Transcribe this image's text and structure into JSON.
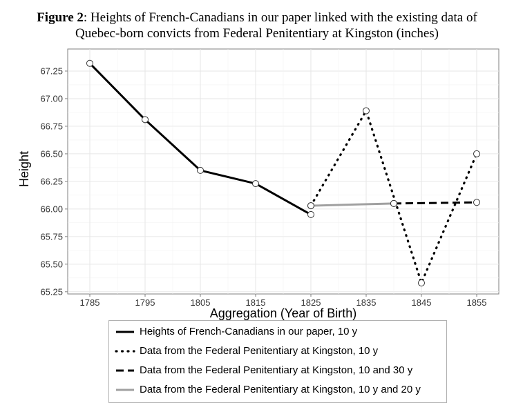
{
  "title": {
    "figure_label": "Figure 2",
    "line1_rest": ": Heights of French-Canadians in our paper linked with the existing data of",
    "line2": "Quebec-born convicts from Federal Penitentiary at Kingston (inches)"
  },
  "chart_data": {
    "type": "line",
    "xlabel": "Aggregation (Year of Birth)",
    "ylabel": "Height",
    "xlim": [
      1781,
      1859
    ],
    "ylim": [
      65.23,
      67.45
    ],
    "x_ticks": [
      1785,
      1795,
      1805,
      1815,
      1825,
      1835,
      1845,
      1855
    ],
    "y_ticks": [
      65.25,
      65.5,
      65.75,
      66.0,
      66.25,
      66.5,
      66.75,
      67.0,
      67.25
    ],
    "y_tick_labels": [
      "65.25",
      "65.50",
      "65.75",
      "66.00",
      "66.25",
      "66.50",
      "66.75",
      "67.00",
      "67.25"
    ],
    "grid": true,
    "legend_position": "bottom",
    "series": [
      {
        "name": "Heights of French-Canadians in our paper, 10 y",
        "style": "solid",
        "color": "#000000",
        "x": [
          1785,
          1795,
          1805,
          1815,
          1825
        ],
        "y": [
          67.32,
          66.81,
          66.35,
          66.23,
          65.95
        ]
      },
      {
        "name": "Data from the Federal Penitentiary at Kingston, 10 y",
        "style": "dotted",
        "color": "#000000",
        "x": [
          1825,
          1835,
          1845,
          1855
        ],
        "y": [
          66.03,
          66.89,
          65.33,
          66.5
        ]
      },
      {
        "name": "Data from the Federal Penitentiary at Kingston, 10 and 30 y",
        "style": "dashed",
        "color": "#000000",
        "x": [
          1840,
          1855
        ],
        "y": [
          66.05,
          66.06
        ]
      },
      {
        "name": "Data from the Federal Penitentiary at Kingston, 10 y and 20 y",
        "style": "solid-gray",
        "color": "#a0a0a0",
        "x": [
          1825,
          1840
        ],
        "y": [
          66.03,
          66.05
        ]
      }
    ]
  }
}
